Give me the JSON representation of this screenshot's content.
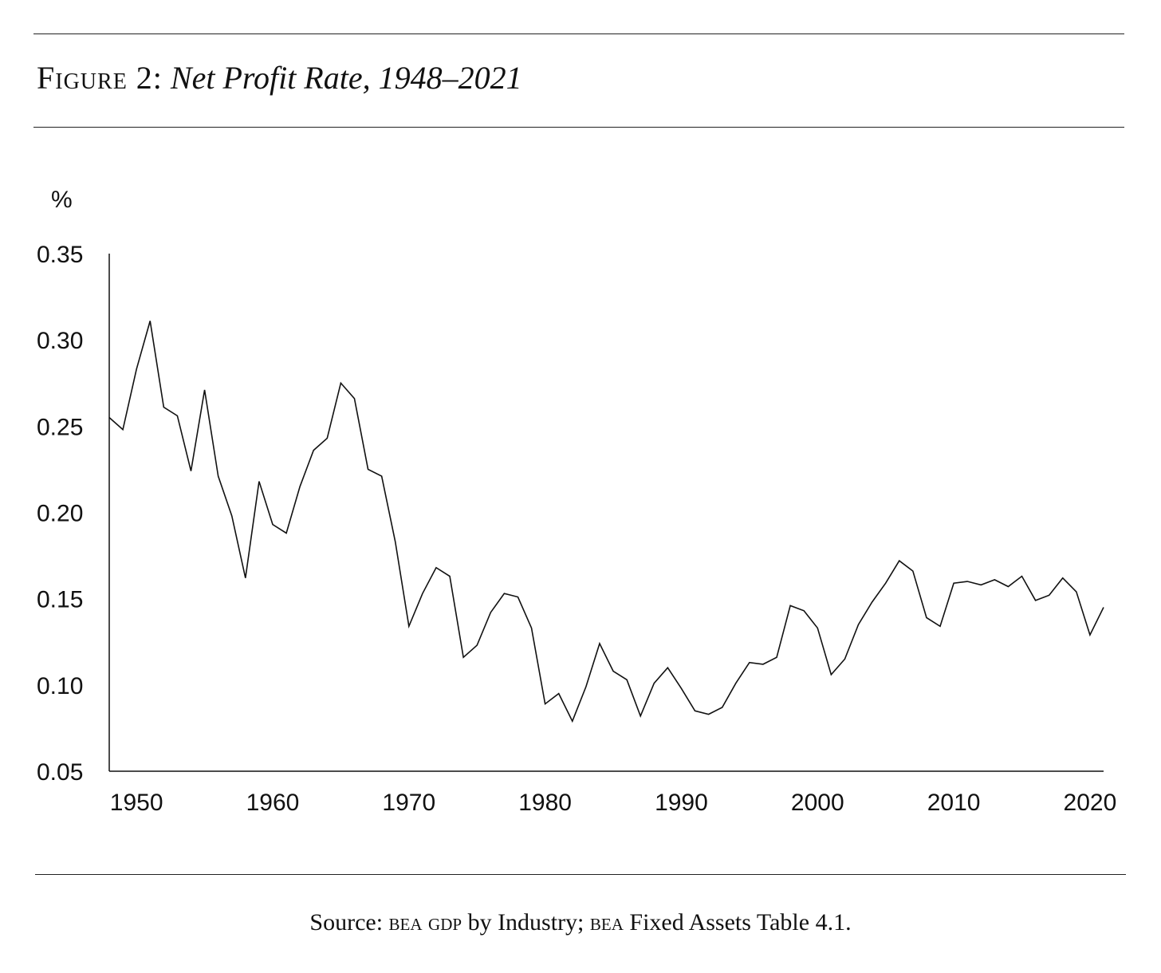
{
  "figure": {
    "label": "Figure 2:",
    "caption": "Net Profit Rate, 1948–2021"
  },
  "source": {
    "prefix": "Source:",
    "org_1": "bea gdp",
    "text_1": "by Industry;",
    "org_2": "bea",
    "text_2": "Fixed Assets Table 4.1."
  },
  "colors": {
    "line": "#111111",
    "axis": "#111111",
    "background": "#ffffff"
  },
  "chart_data": {
    "type": "line",
    "title": "Net Profit Rate, 1948–2021",
    "xlabel": "",
    "ylabel": "%",
    "xlim": [
      1948,
      2021
    ],
    "ylim": [
      0.05,
      0.35
    ],
    "xticks": [
      1950,
      1960,
      1970,
      1980,
      1990,
      2000,
      2010,
      2020
    ],
    "yticks": [
      "0.05",
      "0.10",
      "0.15",
      "0.20",
      "0.25",
      "0.30",
      "0.35"
    ],
    "grid": false,
    "legend": "none",
    "series": [
      {
        "x": [
          1948,
          1949,
          1950,
          1951,
          1952,
          1953,
          1954,
          1955,
          1956,
          1957,
          1958,
          1959,
          1960,
          1961,
          1962,
          1963,
          1964,
          1965,
          1966,
          1967,
          1968,
          1969,
          1970,
          1971,
          1972,
          1973,
          1974,
          1975,
          1976,
          1977,
          1978,
          1979,
          1980,
          1981,
          1982,
          1983,
          1984,
          1985,
          1986,
          1987,
          1988,
          1989,
          1990,
          1991,
          1992,
          1993,
          1994,
          1995,
          1996,
          1997,
          1998,
          1999,
          2000,
          2001,
          2002,
          2003,
          2004,
          2005,
          2006,
          2007,
          2008,
          2009,
          2010,
          2011,
          2012,
          2013,
          2014,
          2015,
          2016,
          2017,
          2018,
          2019,
          2020,
          2021
        ],
        "values": [
          0.255,
          0.248,
          0.283,
          0.311,
          0.261,
          0.256,
          0.224,
          0.271,
          0.221,
          0.198,
          0.162,
          0.218,
          0.193,
          0.188,
          0.215,
          0.236,
          0.243,
          0.275,
          0.266,
          0.225,
          0.221,
          0.183,
          0.134,
          0.153,
          0.168,
          0.163,
          0.116,
          0.123,
          0.142,
          0.153,
          0.151,
          0.133,
          0.089,
          0.095,
          0.079,
          0.099,
          0.124,
          0.108,
          0.103,
          0.082,
          0.101,
          0.11,
          0.098,
          0.085,
          0.083,
          0.087,
          0.101,
          0.113,
          0.112,
          0.116,
          0.146,
          0.143,
          0.133,
          0.106,
          0.115,
          0.135,
          0.148,
          0.159,
          0.172,
          0.166,
          0.139,
          0.134,
          0.159,
          0.16,
          0.158,
          0.161,
          0.157,
          0.163,
          0.149,
          0.152,
          0.162,
          0.154,
          0.129,
          0.145
        ]
      }
    ]
  }
}
